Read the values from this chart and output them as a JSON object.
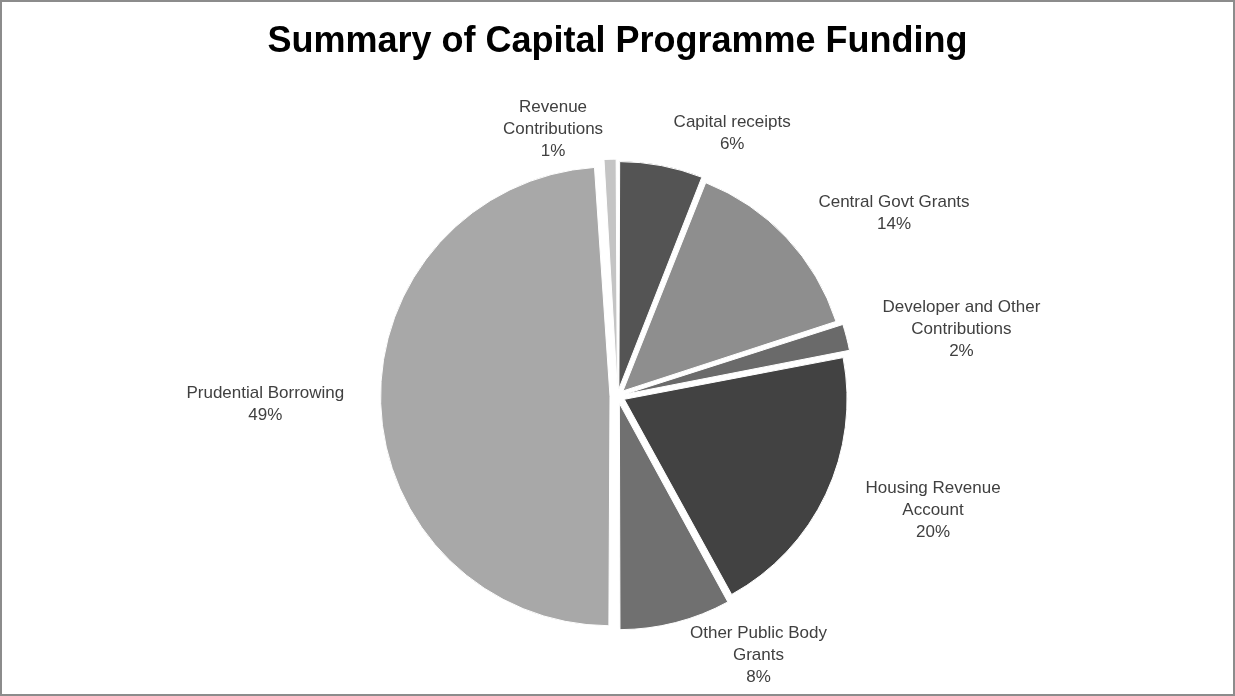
{
  "chart_data": {
    "type": "pie",
    "title": "Summary of Capital Programme Funding",
    "categories": [
      "Capital receipts",
      "Central Govt Grants",
      "Developer and Other Contributions",
      "Housing Revenue Account",
      "Other Public Body Grants",
      "Prudential Borrowing",
      "Revenue Contributions"
    ],
    "values": [
      6,
      14,
      2,
      20,
      8,
      49,
      1
    ],
    "value_labels": [
      "6%",
      "14%",
      "2%",
      "20%",
      "8%",
      "49%",
      "1%"
    ],
    "colors": [
      "#545454",
      "#8e8e8e",
      "#6a6a6a",
      "#424242",
      "#707070",
      "#a8a8a8",
      "#c4c4c4"
    ],
    "legend": false
  }
}
